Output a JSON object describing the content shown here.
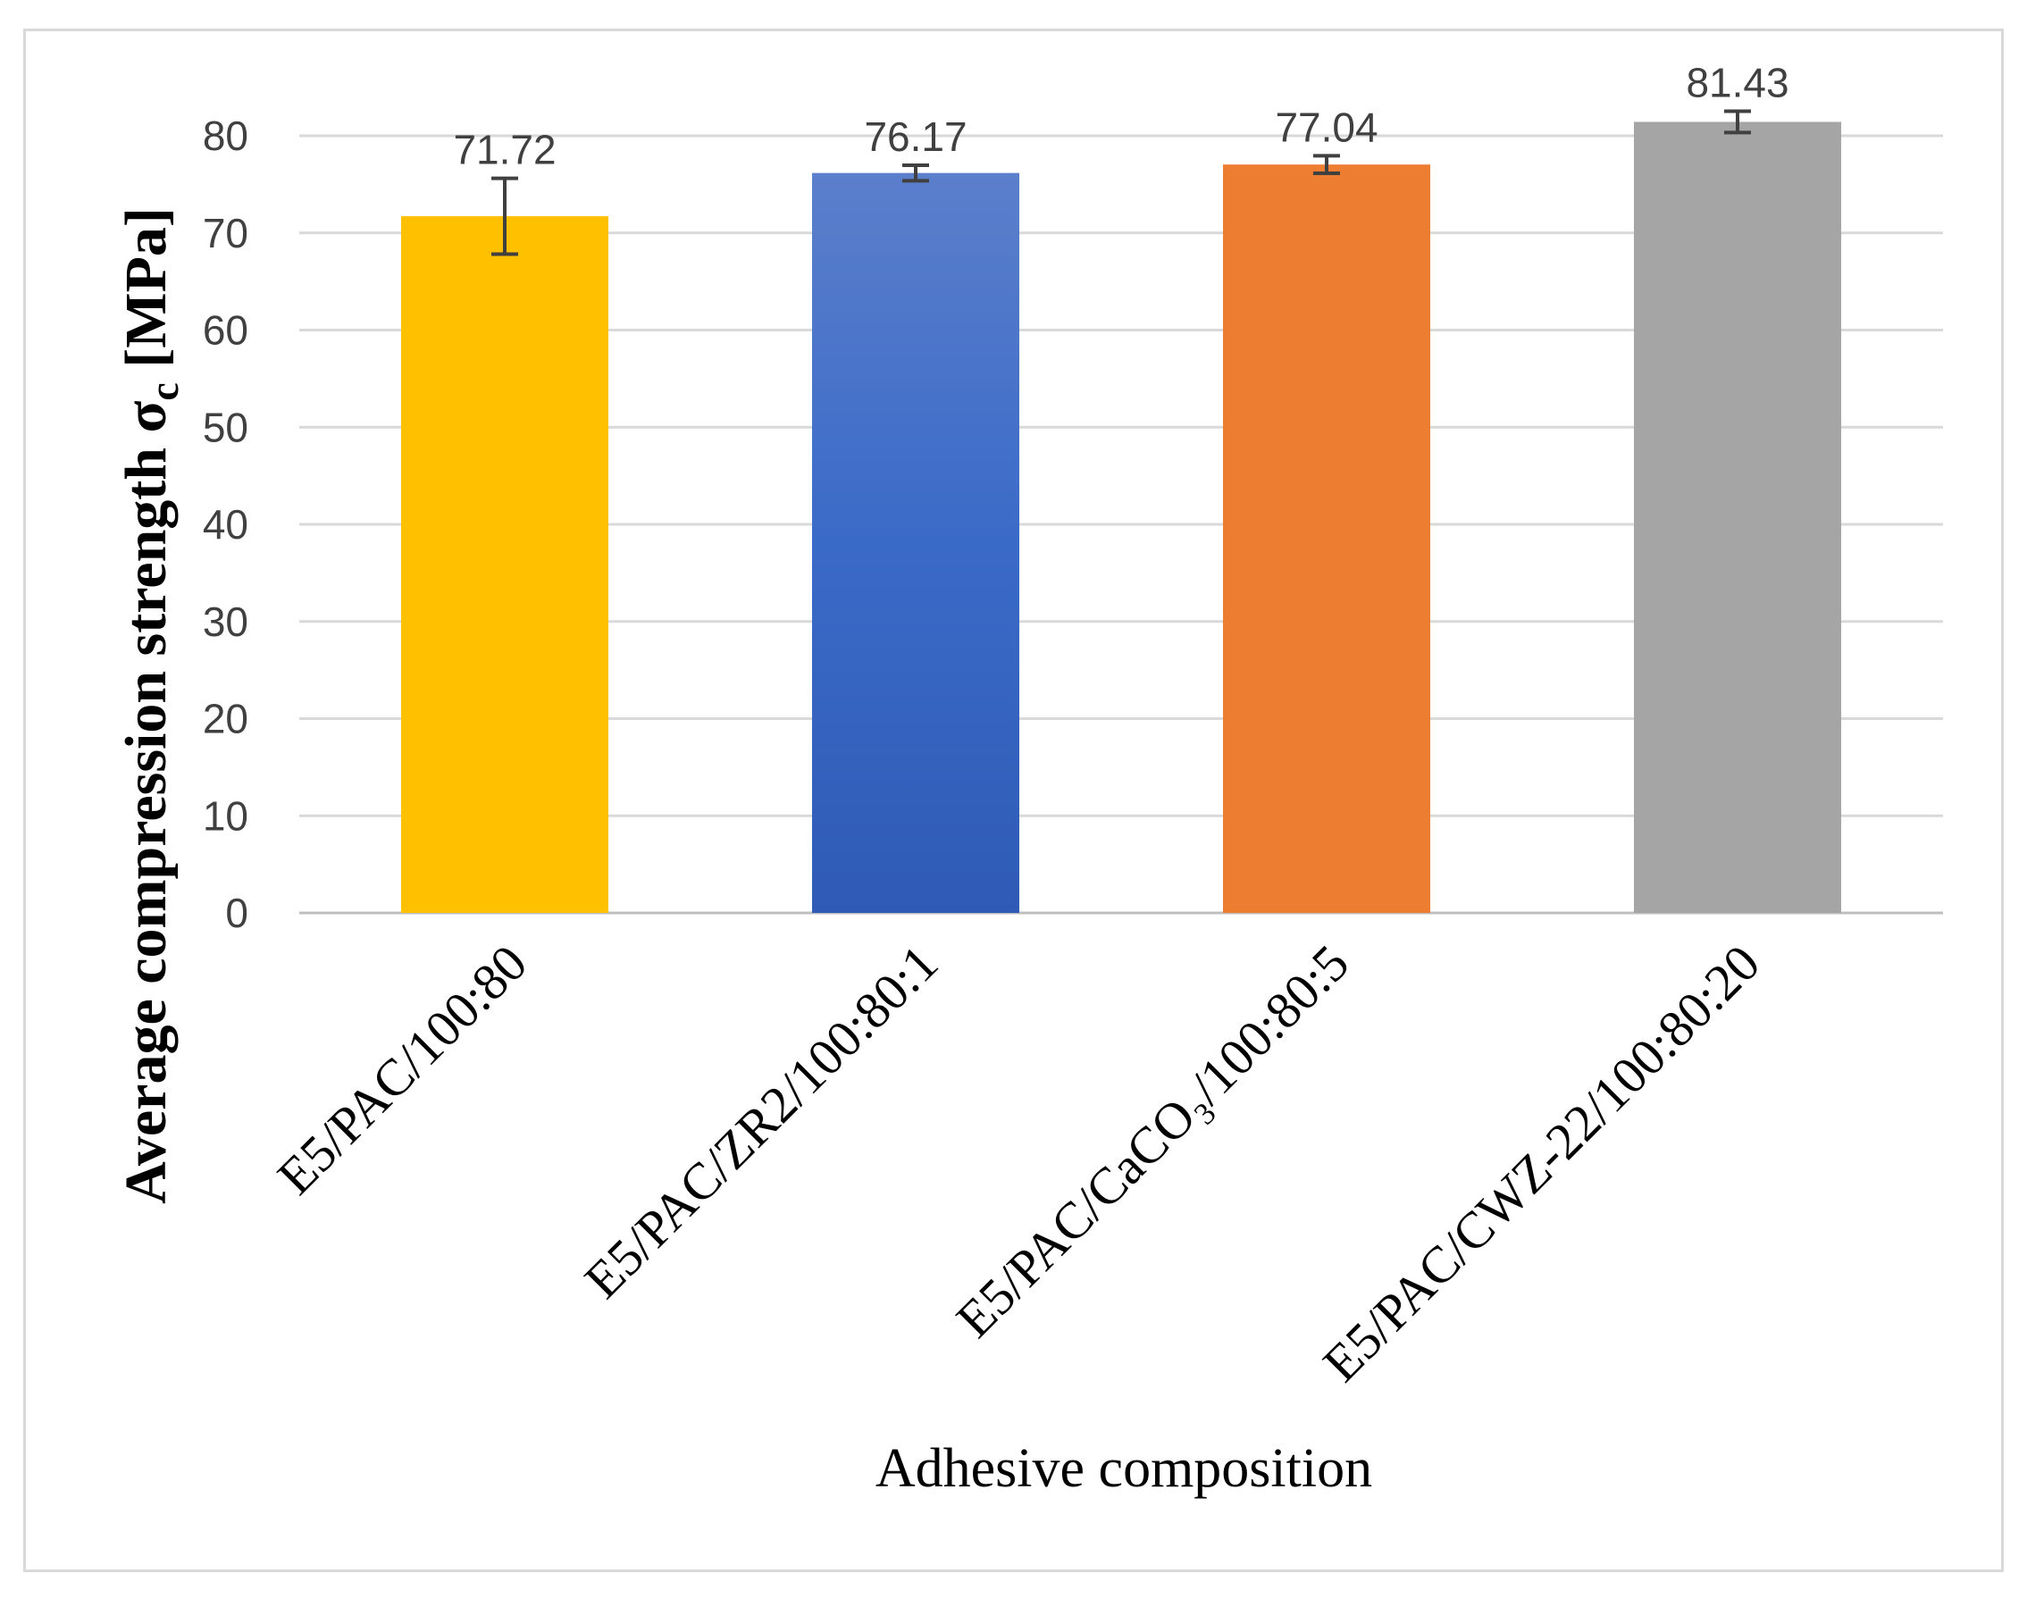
{
  "chart_data": {
    "type": "bar",
    "categories": [
      "E5/PAC/100:80",
      "E5/PAC/ZR2/100:80:1",
      "E5/PAC/CaCO₃/100:80:5",
      "E5/PAC/CWZ-22/100:80:20"
    ],
    "values": [
      71.72,
      76.17,
      77.04,
      81.43
    ],
    "value_labels": [
      "71.72",
      "76.17",
      "77.04",
      "81.43"
    ],
    "error": [
      3.9,
      0.8,
      0.9,
      1.1
    ],
    "colors": [
      "#FFC000",
      "#4472C4",
      "#ED7D31",
      "#A5A5A5"
    ],
    "title": "",
    "xlabel": "Adhesive composition",
    "ylabel": "Average compression strength σ",
    "ylabel_subscript": "c",
    "ylabel_unit": " [MPa]",
    "ylim": [
      0,
      80
    ],
    "yticks": [
      0,
      10,
      20,
      30,
      40,
      50,
      60,
      70,
      80
    ],
    "grid": true,
    "legend": "none"
  }
}
